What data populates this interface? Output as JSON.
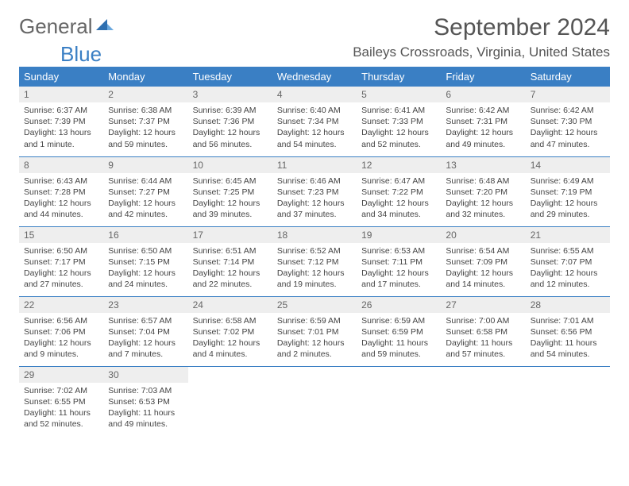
{
  "brand": {
    "general": "General",
    "blue": "Blue"
  },
  "title": "September 2024",
  "location": "Baileys Crossroads, Virginia, United States",
  "colors": {
    "header_bg": "#3a7fc4",
    "header_text": "#ffffff",
    "daynum_bg": "#eeeeee",
    "row_divider": "#3a7fc4",
    "body_text": "#444444",
    "title_text": "#555555"
  },
  "weekdays": [
    "Sunday",
    "Monday",
    "Tuesday",
    "Wednesday",
    "Thursday",
    "Friday",
    "Saturday"
  ],
  "days": [
    {
      "num": "1",
      "sunrise": "Sunrise: 6:37 AM",
      "sunset": "Sunset: 7:39 PM",
      "daylight": "Daylight: 13 hours and 1 minute."
    },
    {
      "num": "2",
      "sunrise": "Sunrise: 6:38 AM",
      "sunset": "Sunset: 7:37 PM",
      "daylight": "Daylight: 12 hours and 59 minutes."
    },
    {
      "num": "3",
      "sunrise": "Sunrise: 6:39 AM",
      "sunset": "Sunset: 7:36 PM",
      "daylight": "Daylight: 12 hours and 56 minutes."
    },
    {
      "num": "4",
      "sunrise": "Sunrise: 6:40 AM",
      "sunset": "Sunset: 7:34 PM",
      "daylight": "Daylight: 12 hours and 54 minutes."
    },
    {
      "num": "5",
      "sunrise": "Sunrise: 6:41 AM",
      "sunset": "Sunset: 7:33 PM",
      "daylight": "Daylight: 12 hours and 52 minutes."
    },
    {
      "num": "6",
      "sunrise": "Sunrise: 6:42 AM",
      "sunset": "Sunset: 7:31 PM",
      "daylight": "Daylight: 12 hours and 49 minutes."
    },
    {
      "num": "7",
      "sunrise": "Sunrise: 6:42 AM",
      "sunset": "Sunset: 7:30 PM",
      "daylight": "Daylight: 12 hours and 47 minutes."
    },
    {
      "num": "8",
      "sunrise": "Sunrise: 6:43 AM",
      "sunset": "Sunset: 7:28 PM",
      "daylight": "Daylight: 12 hours and 44 minutes."
    },
    {
      "num": "9",
      "sunrise": "Sunrise: 6:44 AM",
      "sunset": "Sunset: 7:27 PM",
      "daylight": "Daylight: 12 hours and 42 minutes."
    },
    {
      "num": "10",
      "sunrise": "Sunrise: 6:45 AM",
      "sunset": "Sunset: 7:25 PM",
      "daylight": "Daylight: 12 hours and 39 minutes."
    },
    {
      "num": "11",
      "sunrise": "Sunrise: 6:46 AM",
      "sunset": "Sunset: 7:23 PM",
      "daylight": "Daylight: 12 hours and 37 minutes."
    },
    {
      "num": "12",
      "sunrise": "Sunrise: 6:47 AM",
      "sunset": "Sunset: 7:22 PM",
      "daylight": "Daylight: 12 hours and 34 minutes."
    },
    {
      "num": "13",
      "sunrise": "Sunrise: 6:48 AM",
      "sunset": "Sunset: 7:20 PM",
      "daylight": "Daylight: 12 hours and 32 minutes."
    },
    {
      "num": "14",
      "sunrise": "Sunrise: 6:49 AM",
      "sunset": "Sunset: 7:19 PM",
      "daylight": "Daylight: 12 hours and 29 minutes."
    },
    {
      "num": "15",
      "sunrise": "Sunrise: 6:50 AM",
      "sunset": "Sunset: 7:17 PM",
      "daylight": "Daylight: 12 hours and 27 minutes."
    },
    {
      "num": "16",
      "sunrise": "Sunrise: 6:50 AM",
      "sunset": "Sunset: 7:15 PM",
      "daylight": "Daylight: 12 hours and 24 minutes."
    },
    {
      "num": "17",
      "sunrise": "Sunrise: 6:51 AM",
      "sunset": "Sunset: 7:14 PM",
      "daylight": "Daylight: 12 hours and 22 minutes."
    },
    {
      "num": "18",
      "sunrise": "Sunrise: 6:52 AM",
      "sunset": "Sunset: 7:12 PM",
      "daylight": "Daylight: 12 hours and 19 minutes."
    },
    {
      "num": "19",
      "sunrise": "Sunrise: 6:53 AM",
      "sunset": "Sunset: 7:11 PM",
      "daylight": "Daylight: 12 hours and 17 minutes."
    },
    {
      "num": "20",
      "sunrise": "Sunrise: 6:54 AM",
      "sunset": "Sunset: 7:09 PM",
      "daylight": "Daylight: 12 hours and 14 minutes."
    },
    {
      "num": "21",
      "sunrise": "Sunrise: 6:55 AM",
      "sunset": "Sunset: 7:07 PM",
      "daylight": "Daylight: 12 hours and 12 minutes."
    },
    {
      "num": "22",
      "sunrise": "Sunrise: 6:56 AM",
      "sunset": "Sunset: 7:06 PM",
      "daylight": "Daylight: 12 hours and 9 minutes."
    },
    {
      "num": "23",
      "sunrise": "Sunrise: 6:57 AM",
      "sunset": "Sunset: 7:04 PM",
      "daylight": "Daylight: 12 hours and 7 minutes."
    },
    {
      "num": "24",
      "sunrise": "Sunrise: 6:58 AM",
      "sunset": "Sunset: 7:02 PM",
      "daylight": "Daylight: 12 hours and 4 minutes."
    },
    {
      "num": "25",
      "sunrise": "Sunrise: 6:59 AM",
      "sunset": "Sunset: 7:01 PM",
      "daylight": "Daylight: 12 hours and 2 minutes."
    },
    {
      "num": "26",
      "sunrise": "Sunrise: 6:59 AM",
      "sunset": "Sunset: 6:59 PM",
      "daylight": "Daylight: 11 hours and 59 minutes."
    },
    {
      "num": "27",
      "sunrise": "Sunrise: 7:00 AM",
      "sunset": "Sunset: 6:58 PM",
      "daylight": "Daylight: 11 hours and 57 minutes."
    },
    {
      "num": "28",
      "sunrise": "Sunrise: 7:01 AM",
      "sunset": "Sunset: 6:56 PM",
      "daylight": "Daylight: 11 hours and 54 minutes."
    },
    {
      "num": "29",
      "sunrise": "Sunrise: 7:02 AM",
      "sunset": "Sunset: 6:55 PM",
      "daylight": "Daylight: 11 hours and 52 minutes."
    },
    {
      "num": "30",
      "sunrise": "Sunrise: 7:03 AM",
      "sunset": "Sunset: 6:53 PM",
      "daylight": "Daylight: 11 hours and 49 minutes."
    }
  ],
  "layout": {
    "start_weekday": 0,
    "total_cells": 35
  }
}
